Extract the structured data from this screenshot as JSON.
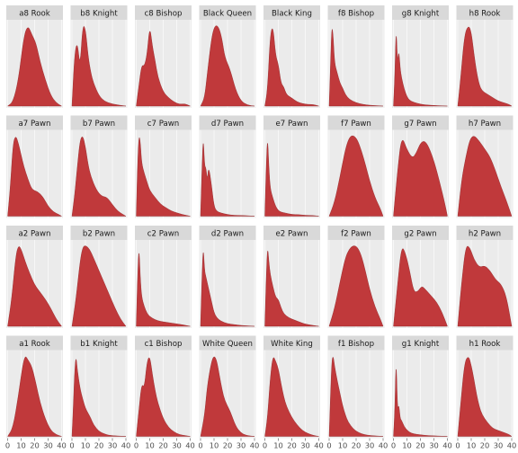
{
  "chart_data": {
    "type": "area",
    "title": "",
    "xlabel": "",
    "ylabel": "",
    "xlim": [
      0,
      40
    ],
    "x_ticks": [
      0,
      10,
      20,
      30,
      40
    ],
    "x_tick_labels": [
      "0",
      "10",
      "20",
      "30",
      "40"
    ],
    "grid": true,
    "fill_color": "#c0393b",
    "y_scale": "free",
    "facets": [
      {
        "label": "a8 Rook",
        "x": [
          0,
          4,
          8,
          12,
          15,
          18,
          21,
          24,
          28,
          32,
          36,
          40
        ],
        "y": [
          0,
          0.05,
          0.32,
          0.86,
          1.0,
          0.88,
          0.78,
          0.55,
          0.32,
          0.13,
          0.04,
          0
        ]
      },
      {
        "label": "b8 Knight",
        "x": [
          0,
          2,
          4,
          6,
          8,
          10,
          12,
          14,
          16,
          20,
          24,
          30,
          40
        ],
        "y": [
          0,
          0.55,
          0.68,
          0.4,
          0.85,
          0.82,
          0.52,
          0.35,
          0.24,
          0.11,
          0.05,
          0.02,
          0
        ]
      },
      {
        "label": "c8 Bishop",
        "x": [
          0,
          2,
          4,
          6,
          8,
          10,
          12,
          14,
          16,
          20,
          24,
          28,
          32,
          36,
          40
        ],
        "y": [
          0,
          0.25,
          0.5,
          0.48,
          0.62,
          0.98,
          0.72,
          0.55,
          0.35,
          0.17,
          0.1,
          0.05,
          0.02,
          0.03,
          0
        ]
      },
      {
        "label": "Black Queen",
        "x": [
          0,
          3,
          5,
          8,
          10,
          12,
          14,
          16,
          18,
          22,
          26,
          30,
          35,
          40
        ],
        "y": [
          0,
          0.1,
          0.4,
          0.82,
          0.97,
          1.0,
          0.95,
          0.82,
          0.6,
          0.45,
          0.2,
          0.06,
          0.01,
          0
        ]
      },
      {
        "label": "Black King",
        "x": [
          0,
          2,
          4,
          6,
          8,
          10,
          12,
          14,
          16,
          20,
          24,
          28,
          32,
          36,
          40
        ],
        "y": [
          0,
          0.2,
          0.88,
          1.0,
          0.62,
          0.52,
          0.28,
          0.24,
          0.14,
          0.1,
          0.05,
          0.03,
          0.02,
          0.02,
          0
        ]
      },
      {
        "label": "f8 Bishop",
        "x": [
          0,
          1,
          2,
          3,
          4,
          6,
          8,
          10,
          12,
          15,
          20,
          25,
          30,
          40
        ],
        "y": [
          0,
          0.5,
          0.98,
          0.85,
          0.52,
          0.4,
          0.28,
          0.22,
          0.14,
          0.08,
          0.04,
          0.02,
          0.01,
          0
        ]
      },
      {
        "label": "g8 Knight",
        "x": [
          0,
          1,
          2,
          3,
          4,
          5,
          6,
          8,
          10,
          12,
          15,
          20,
          25,
          40
        ],
        "y": [
          0,
          0.3,
          0.86,
          0.45,
          0.6,
          0.4,
          0.3,
          0.18,
          0.1,
          0.06,
          0.04,
          0.02,
          0.01,
          0
        ]
      },
      {
        "label": "h8 Rook",
        "x": [
          0,
          2,
          5,
          8,
          10,
          12,
          14,
          16,
          18,
          22,
          26,
          30,
          34,
          38,
          40
        ],
        "y": [
          0,
          0.3,
          0.85,
          0.96,
          0.88,
          0.62,
          0.4,
          0.25,
          0.18,
          0.14,
          0.1,
          0.06,
          0.04,
          0.02,
          0
        ]
      },
      {
        "label": "a7 Pawn",
        "x": [
          0,
          2,
          4,
          6,
          8,
          10,
          12,
          15,
          18,
          22,
          26,
          30,
          34,
          38,
          40
        ],
        "y": [
          0,
          0.35,
          0.88,
          0.98,
          0.88,
          0.74,
          0.6,
          0.45,
          0.32,
          0.3,
          0.24,
          0.12,
          0.05,
          0.02,
          0
        ]
      },
      {
        "label": "b7 Pawn",
        "x": [
          0,
          2,
          4,
          6,
          8,
          10,
          12,
          14,
          18,
          22,
          26,
          30,
          34,
          38,
          40
        ],
        "y": [
          0,
          0.25,
          0.6,
          0.92,
          0.98,
          0.84,
          0.62,
          0.48,
          0.32,
          0.24,
          0.23,
          0.14,
          0.06,
          0.02,
          0
        ]
      },
      {
        "label": "c7 Pawn",
        "x": [
          0,
          1,
          2,
          3,
          4,
          6,
          8,
          10,
          14,
          18,
          22,
          26,
          30,
          34,
          40
        ],
        "y": [
          0,
          0.6,
          0.95,
          0.88,
          0.62,
          0.5,
          0.4,
          0.3,
          0.22,
          0.14,
          0.1,
          0.06,
          0.04,
          0.02,
          0
        ]
      },
      {
        "label": "d7 Pawn",
        "x": [
          0,
          1,
          2,
          3,
          4,
          5,
          6,
          8,
          10,
          12,
          15,
          20,
          25,
          30,
          40
        ],
        "y": [
          0,
          0.55,
          1.0,
          0.62,
          0.6,
          0.44,
          0.62,
          0.4,
          0.12,
          0.06,
          0.04,
          0.02,
          0.01,
          0.01,
          0
        ]
      },
      {
        "label": "e7 Pawn",
        "x": [
          0,
          1,
          2,
          3,
          4,
          6,
          8,
          10,
          12,
          15,
          20,
          25,
          30,
          35,
          40
        ],
        "y": [
          0,
          0.6,
          1.0,
          0.6,
          0.34,
          0.22,
          0.12,
          0.07,
          0.05,
          0.04,
          0.02,
          0.02,
          0.01,
          0.01,
          0
        ]
      },
      {
        "label": "f7 Pawn",
        "x": [
          0,
          4,
          8,
          12,
          15,
          18,
          21,
          24,
          27,
          30,
          34,
          38,
          40
        ],
        "y": [
          0,
          0.15,
          0.42,
          0.72,
          0.85,
          0.87,
          0.82,
          0.7,
          0.55,
          0.38,
          0.2,
          0.08,
          0
        ]
      },
      {
        "label": "g7 Pawn",
        "x": [
          0,
          3,
          6,
          10,
          14,
          17,
          20,
          23,
          26,
          30,
          34,
          38,
          40
        ],
        "y": [
          0,
          0.4,
          0.73,
          0.6,
          0.52,
          0.57,
          0.66,
          0.68,
          0.63,
          0.5,
          0.32,
          0.12,
          0
        ]
      },
      {
        "label": "h7 Pawn",
        "x": [
          0,
          3,
          6,
          9,
          12,
          16,
          20,
          24,
          28,
          32,
          36,
          40
        ],
        "y": [
          0,
          0.38,
          0.6,
          0.78,
          0.82,
          0.76,
          0.68,
          0.6,
          0.46,
          0.3,
          0.16,
          0
        ]
      },
      {
        "label": "a2 Pawn",
        "x": [
          0,
          3,
          6,
          8,
          10,
          13,
          16,
          20,
          24,
          28,
          32,
          36,
          40
        ],
        "y": [
          0,
          0.3,
          0.78,
          0.9,
          0.86,
          0.72,
          0.6,
          0.46,
          0.38,
          0.3,
          0.2,
          0.08,
          0
        ]
      },
      {
        "label": "b2 Pawn",
        "x": [
          0,
          3,
          6,
          8,
          10,
          13,
          16,
          20,
          24,
          28,
          32,
          36,
          40
        ],
        "y": [
          0,
          0.3,
          0.72,
          0.88,
          0.9,
          0.86,
          0.76,
          0.62,
          0.48,
          0.34,
          0.2,
          0.08,
          0
        ]
      },
      {
        "label": "c2 Pawn",
        "x": [
          0,
          1,
          2,
          3,
          4,
          6,
          8,
          10,
          14,
          18,
          22,
          26,
          30,
          34,
          40
        ],
        "y": [
          0,
          0.6,
          1.0,
          0.6,
          0.36,
          0.24,
          0.16,
          0.12,
          0.08,
          0.06,
          0.05,
          0.04,
          0.03,
          0.02,
          0
        ]
      },
      {
        "label": "d2 Pawn",
        "x": [
          0,
          1,
          2,
          3,
          4,
          6,
          8,
          10,
          12,
          15,
          20,
          25,
          30,
          40
        ],
        "y": [
          0,
          0.55,
          0.95,
          0.65,
          0.58,
          0.44,
          0.3,
          0.16,
          0.1,
          0.06,
          0.03,
          0.02,
          0.01,
          0
        ]
      },
      {
        "label": "e2 Pawn",
        "x": [
          0,
          1,
          2,
          3,
          4,
          6,
          8,
          10,
          12,
          14,
          18,
          22,
          26,
          30,
          40
        ],
        "y": [
          0,
          0.45,
          0.78,
          0.62,
          0.5,
          0.38,
          0.28,
          0.26,
          0.18,
          0.12,
          0.08,
          0.06,
          0.04,
          0.02,
          0
        ]
      },
      {
        "label": "f2 Pawn",
        "x": [
          0,
          4,
          8,
          12,
          15,
          18,
          21,
          24,
          27,
          30,
          34,
          38,
          40
        ],
        "y": [
          0,
          0.2,
          0.5,
          0.78,
          0.88,
          0.92,
          0.9,
          0.8,
          0.62,
          0.42,
          0.22,
          0.08,
          0
        ]
      },
      {
        "label": "g2 Pawn",
        "x": [
          0,
          3,
          6,
          9,
          12,
          15,
          18,
          21,
          24,
          28,
          32,
          36,
          40
        ],
        "y": [
          0,
          0.4,
          0.8,
          0.72,
          0.55,
          0.34,
          0.34,
          0.4,
          0.36,
          0.3,
          0.24,
          0.14,
          0
        ]
      },
      {
        "label": "h2 Pawn",
        "x": [
          0,
          3,
          6,
          9,
          12,
          16,
          20,
          24,
          28,
          32,
          36,
          40
        ],
        "y": [
          0,
          0.45,
          0.8,
          0.78,
          0.66,
          0.58,
          0.6,
          0.55,
          0.46,
          0.42,
          0.3,
          0
        ]
      },
      {
        "label": "a1 Rook",
        "x": [
          0,
          4,
          8,
          11,
          13,
          15,
          18,
          21,
          24,
          28,
          32,
          36,
          40
        ],
        "y": [
          0,
          0.1,
          0.48,
          0.82,
          0.95,
          0.9,
          0.82,
          0.62,
          0.4,
          0.2,
          0.07,
          0.02,
          0
        ]
      },
      {
        "label": "b1 Knight",
        "x": [
          0,
          1,
          2,
          3,
          4,
          6,
          8,
          10,
          12,
          14,
          16,
          20,
          24,
          28,
          40
        ],
        "y": [
          0,
          0.35,
          0.78,
          0.98,
          0.8,
          0.58,
          0.45,
          0.34,
          0.28,
          0.22,
          0.14,
          0.06,
          0.03,
          0.01,
          0
        ]
      },
      {
        "label": "c1 Bishop",
        "x": [
          0,
          2,
          4,
          6,
          8,
          10,
          12,
          14,
          16,
          20,
          24,
          28,
          32,
          36,
          40
        ],
        "y": [
          0,
          0.3,
          0.6,
          0.55,
          0.85,
          0.92,
          0.7,
          0.52,
          0.38,
          0.2,
          0.1,
          0.05,
          0.02,
          0.01,
          0
        ]
      },
      {
        "label": "White Queen",
        "x": [
          0,
          3,
          5,
          8,
          10,
          12,
          14,
          16,
          18,
          22,
          26,
          30,
          34,
          40
        ],
        "y": [
          0,
          0.25,
          0.6,
          0.88,
          0.96,
          0.9,
          0.72,
          0.55,
          0.42,
          0.3,
          0.12,
          0.04,
          0.01,
          0
        ]
      },
      {
        "label": "White King",
        "x": [
          0,
          2,
          4,
          6,
          8,
          10,
          12,
          14,
          16,
          20,
          24,
          28,
          32,
          36,
          40
        ],
        "y": [
          0,
          0.2,
          0.62,
          0.86,
          0.8,
          0.72,
          0.56,
          0.42,
          0.32,
          0.2,
          0.12,
          0.06,
          0.03,
          0.01,
          0
        ]
      },
      {
        "label": "f1 Bishop",
        "x": [
          0,
          1,
          2,
          3,
          4,
          6,
          8,
          10,
          12,
          14,
          18,
          22,
          26,
          30,
          40
        ],
        "y": [
          0,
          0.45,
          0.84,
          0.9,
          0.78,
          0.62,
          0.48,
          0.34,
          0.24,
          0.16,
          0.08,
          0.04,
          0.02,
          0.01,
          0
        ]
      },
      {
        "label": "g1 Knight",
        "x": [
          0,
          1,
          2,
          3,
          4,
          5,
          6,
          8,
          10,
          12,
          15,
          20,
          25,
          40
        ],
        "y": [
          0,
          0.3,
          1.0,
          0.32,
          0.4,
          0.22,
          0.2,
          0.12,
          0.08,
          0.05,
          0.03,
          0.02,
          0.01,
          0
        ]
      },
      {
        "label": "h1 Rook",
        "x": [
          0,
          2,
          5,
          8,
          10,
          12,
          14,
          16,
          18,
          22,
          26,
          30,
          34,
          38,
          40
        ],
        "y": [
          0,
          0.3,
          0.75,
          0.82,
          0.72,
          0.58,
          0.42,
          0.3,
          0.22,
          0.14,
          0.08,
          0.06,
          0.04,
          0.02,
          0
        ]
      }
    ]
  }
}
